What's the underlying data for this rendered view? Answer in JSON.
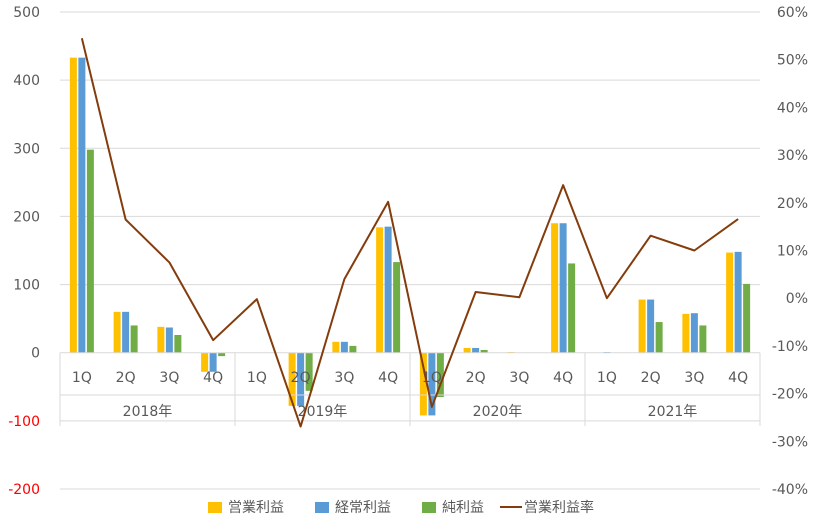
{
  "chart_data": {
    "type": "bar",
    "categories": [
      "1Q",
      "2Q",
      "3Q",
      "4Q",
      "1Q",
      "2Q",
      "3Q",
      "4Q",
      "1Q",
      "2Q",
      "3Q",
      "4Q",
      "1Q",
      "2Q",
      "3Q",
      "4Q"
    ],
    "groups": [
      {
        "label": "2018年"
      },
      {
        "label": "2019年"
      },
      {
        "label": "2020年"
      },
      {
        "label": "2021年"
      }
    ],
    "series": [
      {
        "name": "営業利益",
        "kind": "bar",
        "color": "#FFC000",
        "values": [
          433,
          60,
          38,
          -28,
          0,
          -78,
          16,
          184,
          -92,
          7,
          1,
          190,
          0,
          78,
          57,
          147
        ]
      },
      {
        "name": "経常利益",
        "kind": "bar",
        "color": "#5B9BD5",
        "values": [
          433,
          60,
          37,
          -28,
          0,
          -78,
          16,
          185,
          -92,
          7,
          0,
          190,
          1,
          78,
          58,
          148
        ]
      },
      {
        "name": "純利益",
        "kind": "bar",
        "color": "#70AD47",
        "values": [
          298,
          40,
          26,
          -5,
          0,
          -56,
          10,
          133,
          -65,
          4,
          0,
          131,
          0,
          45,
          40,
          101
        ]
      },
      {
        "name": "営業利益率",
        "kind": "line",
        "color": "#843C0C",
        "axis": "right",
        "values": [
          54.5,
          16.5,
          7.5,
          -8.8,
          -0.2,
          -26.9,
          4.0,
          20.2,
          -22.8,
          1.3,
          0.2,
          23.7,
          0.0,
          13.1,
          10.0,
          16.6
        ]
      }
    ],
    "y_left": {
      "ylim": [
        -200,
        500
      ],
      "ticks": [
        -200,
        -100,
        0,
        100,
        200,
        300,
        400,
        500
      ],
      "tick_labels": [
        "-200",
        "-100",
        "0",
        "100",
        "200",
        "300",
        "400",
        "500"
      ],
      "negative_color": "#FF0000",
      "color": "#595959"
    },
    "y_right": {
      "ylim": [
        -40,
        60
      ],
      "ticks": [
        -40,
        -30,
        -20,
        -10,
        0,
        10,
        20,
        30,
        40,
        50,
        60
      ],
      "tick_labels": [
        "-40%",
        "-30%",
        "-20%",
        "-10%",
        "0%",
        "10%",
        "20%",
        "30%",
        "40%",
        "50%",
        "60%"
      ]
    },
    "grid": true,
    "legend_position": "bottom",
    "title": "",
    "xlabel": "",
    "ylabel": ""
  }
}
